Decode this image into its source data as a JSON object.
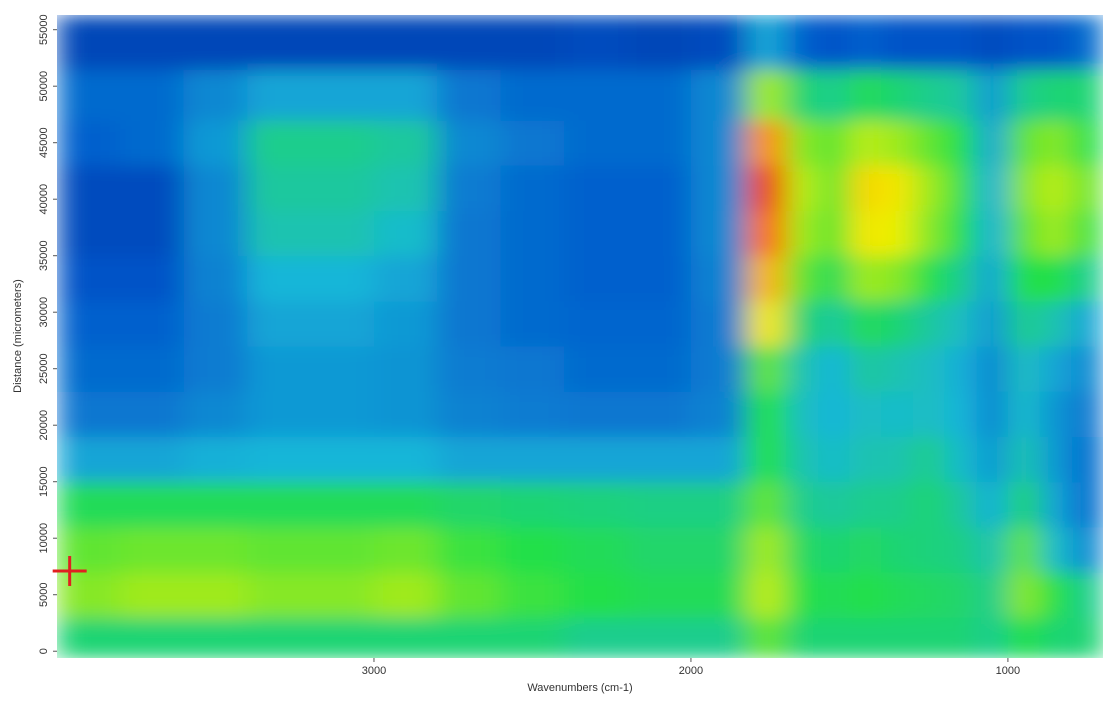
{
  "chart_data": {
    "type": "heatmap",
    "xlabel": "Wavenumbers (cm-1)",
    "ylabel": "Distance (micrometers)",
    "xlim": [
      4000,
      700
    ],
    "ylim": [
      -600,
      56300
    ],
    "xticks": [
      3000,
      2000,
      1000
    ],
    "yticks": [
      0,
      5000,
      10000,
      15000,
      20000,
      25000,
      30000,
      35000,
      40000,
      45000,
      50000,
      55000
    ],
    "zlim": [
      0,
      1
    ],
    "colorscale": [
      "#002a9a",
      "#0058cc",
      "#18b8d8",
      "#22e048",
      "#f2f000",
      "#ff7a00",
      "#e01e00"
    ],
    "x": [
      3900,
      3700,
      3500,
      3300,
      3100,
      2900,
      2700,
      2500,
      2300,
      2100,
      1900,
      1750,
      1650,
      1550,
      1450,
      1350,
      1250,
      1150,
      1050,
      950,
      850,
      750
    ],
    "y": [
      1000,
      5000,
      9000,
      13000,
      17000,
      21000,
      25000,
      29000,
      33000,
      37000,
      41000,
      45000,
      49000,
      54000
    ],
    "z": [
      [
        0.45,
        0.45,
        0.45,
        0.45,
        0.45,
        0.45,
        0.45,
        0.45,
        0.42,
        0.42,
        0.42,
        0.55,
        0.45,
        0.45,
        0.45,
        0.45,
        0.45,
        0.45,
        0.42,
        0.5,
        0.45,
        0.45
      ],
      [
        0.58,
        0.6,
        0.6,
        0.58,
        0.58,
        0.6,
        0.55,
        0.52,
        0.5,
        0.48,
        0.48,
        0.62,
        0.5,
        0.48,
        0.5,
        0.48,
        0.47,
        0.46,
        0.42,
        0.58,
        0.5,
        0.42
      ],
      [
        0.55,
        0.56,
        0.56,
        0.55,
        0.55,
        0.56,
        0.52,
        0.5,
        0.48,
        0.46,
        0.46,
        0.6,
        0.47,
        0.45,
        0.47,
        0.45,
        0.44,
        0.43,
        0.38,
        0.55,
        0.35,
        0.25
      ],
      [
        0.48,
        0.48,
        0.48,
        0.48,
        0.48,
        0.48,
        0.46,
        0.45,
        0.44,
        0.43,
        0.43,
        0.55,
        0.42,
        0.4,
        0.42,
        0.42,
        0.45,
        0.4,
        0.32,
        0.45,
        0.3,
        0.2
      ],
      [
        0.3,
        0.3,
        0.32,
        0.33,
        0.33,
        0.33,
        0.3,
        0.3,
        0.3,
        0.3,
        0.3,
        0.5,
        0.38,
        0.35,
        0.38,
        0.38,
        0.42,
        0.35,
        0.28,
        0.38,
        0.28,
        0.2
      ],
      [
        0.22,
        0.22,
        0.25,
        0.28,
        0.28,
        0.27,
        0.24,
        0.23,
        0.22,
        0.22,
        0.24,
        0.5,
        0.36,
        0.33,
        0.36,
        0.35,
        0.36,
        0.33,
        0.25,
        0.35,
        0.27,
        0.22
      ],
      [
        0.2,
        0.2,
        0.23,
        0.28,
        0.28,
        0.27,
        0.23,
        0.22,
        0.2,
        0.2,
        0.23,
        0.55,
        0.38,
        0.33,
        0.4,
        0.38,
        0.36,
        0.32,
        0.25,
        0.36,
        0.3,
        0.25
      ],
      [
        0.18,
        0.18,
        0.23,
        0.3,
        0.3,
        0.28,
        0.22,
        0.2,
        0.19,
        0.19,
        0.23,
        0.68,
        0.45,
        0.4,
        0.48,
        0.45,
        0.4,
        0.36,
        0.28,
        0.42,
        0.38,
        0.3
      ],
      [
        0.15,
        0.15,
        0.24,
        0.33,
        0.33,
        0.3,
        0.22,
        0.2,
        0.18,
        0.18,
        0.24,
        0.75,
        0.55,
        0.48,
        0.6,
        0.58,
        0.5,
        0.42,
        0.3,
        0.5,
        0.5,
        0.42
      ],
      [
        0.12,
        0.12,
        0.25,
        0.38,
        0.38,
        0.35,
        0.22,
        0.2,
        0.18,
        0.18,
        0.25,
        0.85,
        0.6,
        0.55,
        0.68,
        0.66,
        0.58,
        0.5,
        0.32,
        0.55,
        0.6,
        0.52
      ],
      [
        0.12,
        0.12,
        0.25,
        0.4,
        0.4,
        0.38,
        0.23,
        0.2,
        0.18,
        0.18,
        0.25,
        0.92,
        0.62,
        0.56,
        0.7,
        0.68,
        0.6,
        0.52,
        0.32,
        0.58,
        0.62,
        0.56
      ],
      [
        0.18,
        0.2,
        0.28,
        0.42,
        0.42,
        0.4,
        0.25,
        0.22,
        0.2,
        0.2,
        0.25,
        0.8,
        0.58,
        0.55,
        0.62,
        0.6,
        0.55,
        0.5,
        0.3,
        0.55,
        0.58,
        0.5
      ],
      [
        0.2,
        0.2,
        0.25,
        0.3,
        0.3,
        0.3,
        0.22,
        0.2,
        0.2,
        0.2,
        0.25,
        0.6,
        0.45,
        0.42,
        0.48,
        0.45,
        0.42,
        0.4,
        0.28,
        0.42,
        0.45,
        0.45
      ],
      [
        0.1,
        0.1,
        0.1,
        0.1,
        0.1,
        0.1,
        0.1,
        0.1,
        0.12,
        0.1,
        0.12,
        0.3,
        0.18,
        0.15,
        0.18,
        0.15,
        0.15,
        0.15,
        0.12,
        0.15,
        0.15,
        0.2
      ]
    ],
    "marker": {
      "x": 3960,
      "y": 7100,
      "color": "#e02020"
    }
  }
}
